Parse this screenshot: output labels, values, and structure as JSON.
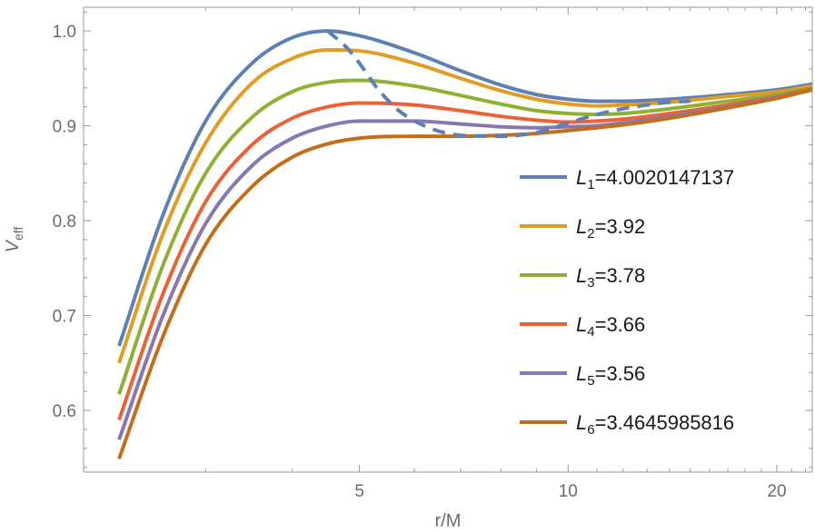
{
  "chart_data": {
    "type": "line",
    "title": "",
    "xlabel": "r/M",
    "ylabel_main": "V",
    "ylabel_sub": "eff",
    "xlim": [
      2.0,
      22.5
    ],
    "ylim": [
      0.535,
      1.025
    ],
    "xticks": [
      {
        "value": 5,
        "label": "5"
      },
      {
        "value": 10,
        "label": "10"
      },
      {
        "value": 20,
        "label": "20"
      }
    ],
    "yticks": [
      {
        "value": 0.6,
        "label": "0.6"
      },
      {
        "value": 0.7,
        "label": "0.7"
      },
      {
        "value": 0.8,
        "label": "0.8"
      },
      {
        "value": 0.9,
        "label": "0.9"
      },
      {
        "value": 1.0,
        "label": "1.0"
      }
    ],
    "legend_position": "right",
    "series": [
      {
        "name_sym": "L",
        "name_sub": "1",
        "name_val": "=4.0020147137",
        "color": "#5e81b5",
        "points": [
          [
            2.25,
            0.668
          ],
          [
            2.6,
            0.805
          ],
          [
            3.0,
            0.905
          ],
          [
            3.5,
            0.966
          ],
          [
            4.0,
            0.993
          ],
          [
            4.5,
            1.0
          ],
          [
            5.0,
            0.995
          ],
          [
            6.0,
            0.977
          ],
          [
            7.0,
            0.958
          ],
          [
            8.0,
            0.943
          ],
          [
            9.0,
            0.933
          ],
          [
            10.0,
            0.928
          ],
          [
            11.0,
            0.926
          ],
          [
            12.0,
            0.926
          ],
          [
            14.0,
            0.928
          ],
          [
            17.0,
            0.933
          ],
          [
            20.0,
            0.938
          ],
          [
            22.5,
            0.944
          ]
        ]
      },
      {
        "name_sym": "L",
        "name_sub": "2",
        "name_val": "=3.92",
        "color": "#e19c24",
        "points": [
          [
            2.25,
            0.65
          ],
          [
            2.6,
            0.785
          ],
          [
            3.0,
            0.882
          ],
          [
            3.5,
            0.945
          ],
          [
            4.0,
            0.971
          ],
          [
            4.5,
            0.98
          ],
          [
            5.0,
            0.979
          ],
          [
            6.0,
            0.966
          ],
          [
            7.0,
            0.95
          ],
          [
            8.0,
            0.937
          ],
          [
            9.0,
            0.928
          ],
          [
            10.0,
            0.923
          ],
          [
            11.0,
            0.921
          ],
          [
            12.0,
            0.922
          ],
          [
            14.0,
            0.925
          ],
          [
            17.0,
            0.931
          ],
          [
            20.0,
            0.936
          ],
          [
            22.5,
            0.942
          ]
        ]
      },
      {
        "name_sym": "L",
        "name_sub": "3",
        "name_val": "=3.78",
        "color": "#8fb032",
        "points": [
          [
            2.25,
            0.617
          ],
          [
            2.6,
            0.752
          ],
          [
            3.0,
            0.85
          ],
          [
            3.5,
            0.909
          ],
          [
            4.0,
            0.936
          ],
          [
            4.5,
            0.946
          ],
          [
            5.0,
            0.948
          ],
          [
            6.0,
            0.942
          ],
          [
            7.0,
            0.932
          ],
          [
            8.0,
            0.923
          ],
          [
            9.0,
            0.916
          ],
          [
            10.0,
            0.913
          ],
          [
            11.0,
            0.912
          ],
          [
            12.0,
            0.913
          ],
          [
            14.0,
            0.918
          ],
          [
            17.0,
            0.926
          ],
          [
            20.0,
            0.933
          ],
          [
            22.5,
            0.94
          ]
        ]
      },
      {
        "name_sym": "L",
        "name_sub": "4",
        "name_val": "=3.66",
        "color": "#eb6235",
        "points": [
          [
            2.25,
            0.59
          ],
          [
            2.6,
            0.722
          ],
          [
            3.0,
            0.82
          ],
          [
            3.5,
            0.88
          ],
          [
            4.0,
            0.908
          ],
          [
            4.5,
            0.92
          ],
          [
            5.0,
            0.924
          ],
          [
            6.0,
            0.922
          ],
          [
            7.0,
            0.916
          ],
          [
            8.0,
            0.91
          ],
          [
            9.0,
            0.906
          ],
          [
            10.0,
            0.904
          ],
          [
            11.0,
            0.905
          ],
          [
            12.0,
            0.907
          ],
          [
            14.0,
            0.913
          ],
          [
            17.0,
            0.922
          ],
          [
            20.0,
            0.931
          ],
          [
            22.5,
            0.939
          ]
        ]
      },
      {
        "name_sym": "L",
        "name_sub": "5",
        "name_val": "=3.56",
        "color": "#8778b3",
        "points": [
          [
            2.25,
            0.569
          ],
          [
            2.6,
            0.699
          ],
          [
            3.0,
            0.797
          ],
          [
            3.5,
            0.858
          ],
          [
            4.0,
            0.887
          ],
          [
            4.5,
            0.9
          ],
          [
            5.0,
            0.905
          ],
          [
            6.0,
            0.905
          ],
          [
            7.0,
            0.902
          ],
          [
            8.0,
            0.899
          ],
          [
            9.0,
            0.898
          ],
          [
            10.0,
            0.899
          ],
          [
            11.0,
            0.9
          ],
          [
            12.0,
            0.903
          ],
          [
            14.0,
            0.91
          ],
          [
            17.0,
            0.92
          ],
          [
            20.0,
            0.93
          ],
          [
            22.5,
            0.938
          ]
        ]
      },
      {
        "name_sym": "L",
        "name_sub": "6",
        "name_val": "=3.4645985816",
        "color": "#c56e1a",
        "points": [
          [
            2.25,
            0.549
          ],
          [
            2.6,
            0.677
          ],
          [
            3.0,
            0.775
          ],
          [
            3.5,
            0.836
          ],
          [
            4.0,
            0.867
          ],
          [
            4.5,
            0.881
          ],
          [
            5.0,
            0.887
          ],
          [
            6.0,
            0.889
          ],
          [
            7.0,
            0.889
          ],
          [
            8.0,
            0.89
          ],
          [
            9.0,
            0.892
          ],
          [
            10.0,
            0.895
          ],
          [
            11.0,
            0.898
          ],
          [
            12.0,
            0.901
          ],
          [
            14.0,
            0.908
          ],
          [
            17.0,
            0.919
          ],
          [
            20.0,
            0.929
          ],
          [
            22.5,
            0.938
          ]
        ]
      }
    ],
    "dashed_curve": {
      "color": "#5e81b5",
      "points": [
        [
          4.5,
          1.0
        ],
        [
          4.8,
          0.982
        ],
        [
          5.0,
          0.966
        ],
        [
          5.3,
          0.94
        ],
        [
          5.7,
          0.916
        ],
        [
          6.3,
          0.898
        ],
        [
          7.0,
          0.89
        ],
        [
          8.0,
          0.889
        ],
        [
          9.0,
          0.893
        ],
        [
          10.0,
          0.903
        ],
        [
          11.0,
          0.912
        ],
        [
          12.0,
          0.918
        ],
        [
          13.0,
          0.922
        ],
        [
          14.0,
          0.925
        ],
        [
          15.0,
          0.926
        ]
      ]
    }
  }
}
